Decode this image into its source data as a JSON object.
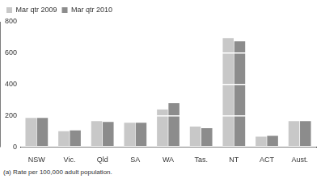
{
  "chart_data": {
    "type": "bar",
    "categories": [
      "NSW",
      "Vic.",
      "Qld",
      "SA",
      "WA",
      "Tas.",
      "NT",
      "ACT",
      "Aust."
    ],
    "series": [
      {
        "name": "Mar qtr 2009",
        "color": "#c8c8c8",
        "values": [
          185,
          100,
          165,
          155,
          240,
          130,
          695,
          65,
          165
        ]
      },
      {
        "name": "Mar qtr 2010",
        "color": "#8c8c8c",
        "values": [
          185,
          105,
          160,
          155,
          280,
          120,
          675,
          70,
          165
        ]
      }
    ],
    "ylim": [
      0,
      800
    ],
    "yticks": [
      0,
      200,
      400,
      600,
      800
    ],
    "grid": true,
    "legend": "top-left",
    "annotations": [
      "(a) Rate per 100,000 adult population."
    ]
  }
}
